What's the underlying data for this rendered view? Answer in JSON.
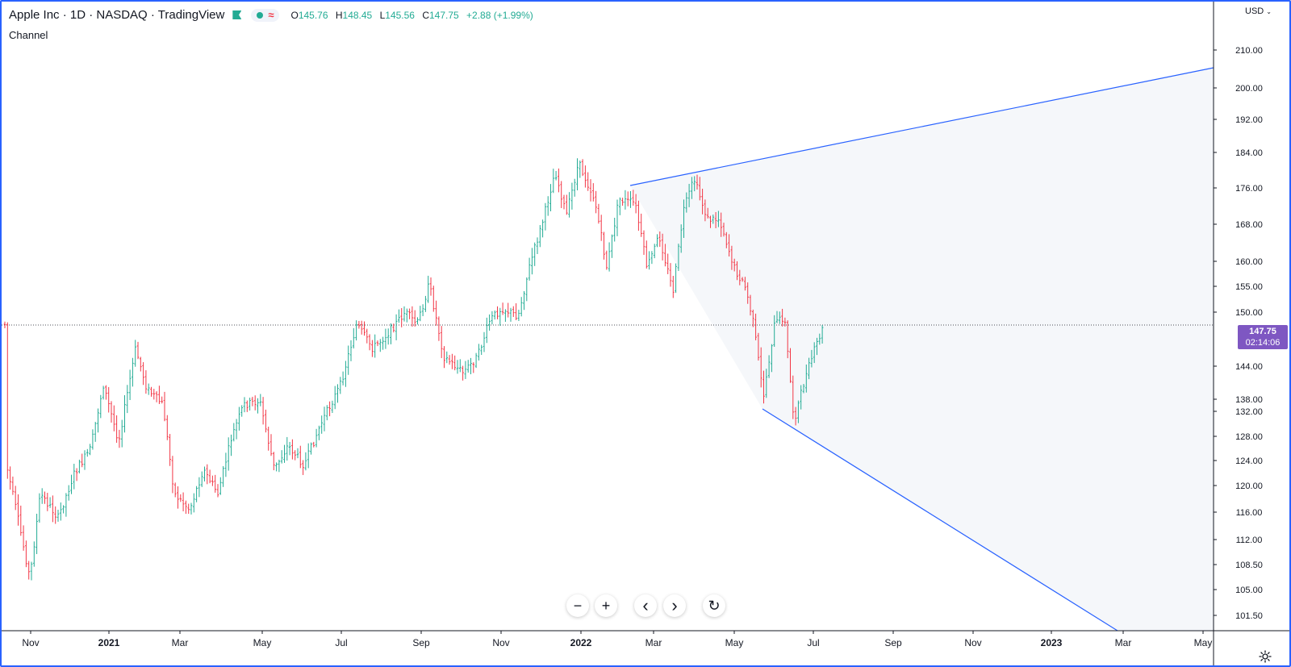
{
  "legend": {
    "title": "Apple Inc · 1D · NASDAQ · TradingView",
    "ohlc": {
      "o_label": "O",
      "o": "145.76",
      "h_label": "H",
      "h": "148.45",
      "l_label": "L",
      "l": "145.56",
      "c_label": "C",
      "c": "147.75",
      "change": "+2.88 (+1.99%)"
    }
  },
  "indicator": {
    "name": "Channel"
  },
  "price_scale": {
    "currency": "USD",
    "ticks": [
      "210.00",
      "200.00",
      "192.00",
      "184.00",
      "176.00",
      "168.00",
      "160.00",
      "155.00",
      "150.00",
      "144.00",
      "138.00",
      "132.00",
      "128.00",
      "124.00",
      "120.00",
      "116.00",
      "112.00",
      "108.50",
      "105.00",
      "101.50"
    ],
    "last_price": "147.75",
    "countdown": "02:14:06"
  },
  "time_axis": {
    "labels": [
      "Nov",
      "2021",
      "Mar",
      "May",
      "Jul",
      "Sep",
      "Nov",
      "2022",
      "Mar",
      "May",
      "Jul",
      "Sep",
      "Nov",
      "2023",
      "Mar",
      "May"
    ],
    "bold": [
      "2021",
      "2022",
      "2023"
    ]
  },
  "controls": {
    "zoom_out": "−",
    "zoom_in": "+",
    "scroll_left": "‹",
    "scroll_right": "›",
    "reset": "↻"
  },
  "colors": {
    "up": "#22ab94",
    "down": "#f23645",
    "channel_line": "#2962ff",
    "channel_fill": "#f5f7fa",
    "price_box": "#7e57c2",
    "frame": "#2962ff"
  },
  "icons": {
    "settings": "gear-icon",
    "flag": "flag-icon"
  }
}
